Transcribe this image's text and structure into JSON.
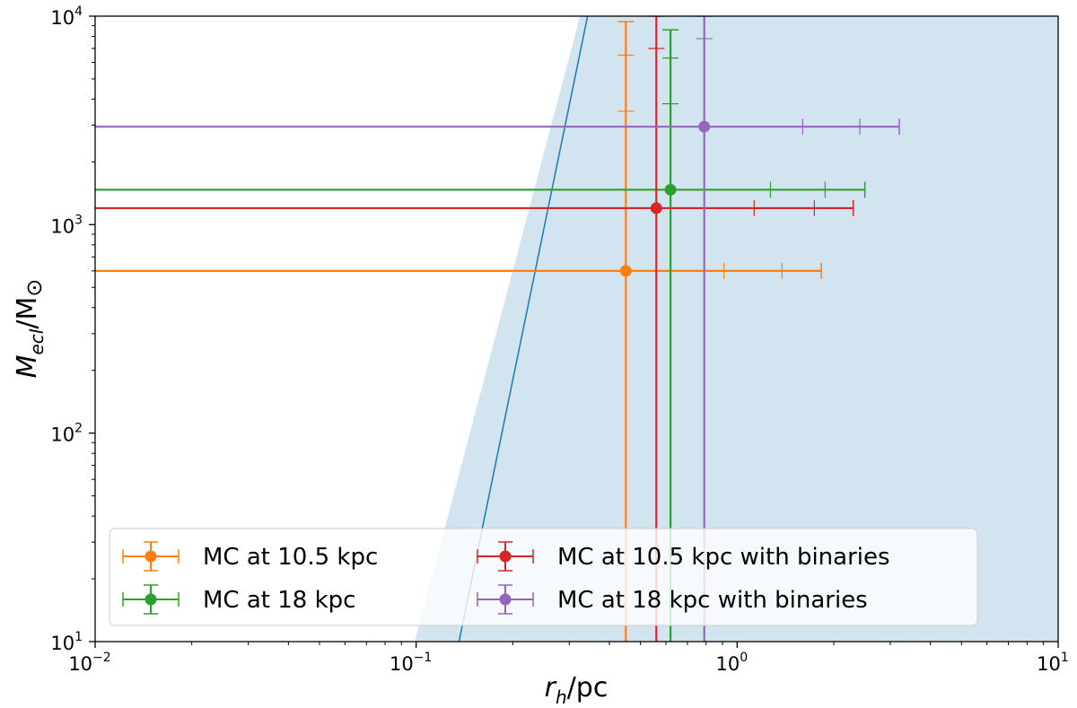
{
  "chart_data": {
    "type": "scatter",
    "x_scale": "log",
    "y_scale": "log",
    "xlim": [
      0.01,
      10
    ],
    "ylim": [
      10,
      10000
    ],
    "xlabel": {
      "main": "r",
      "sub": "h",
      "rest": "/pc"
    },
    "ylabel": {
      "main": "M",
      "sub": "ecl",
      "rest": "/M",
      "sym": "⊙"
    },
    "x_ticks": [
      {
        "value": 0.01,
        "base": "10",
        "exp": "−2"
      },
      {
        "value": 0.1,
        "base": "10",
        "exp": "−1"
      },
      {
        "value": 1,
        "base": "10",
        "exp": "0"
      },
      {
        "value": 10,
        "base": "10",
        "exp": "1"
      }
    ],
    "y_ticks": [
      {
        "value": 10,
        "base": "10",
        "exp": "1"
      },
      {
        "value": 100,
        "base": "10",
        "exp": "2"
      },
      {
        "value": 1000,
        "base": "10",
        "exp": "3"
      },
      {
        "value": 10000,
        "base": "10",
        "exp": "4"
      }
    ],
    "shaded_region": {
      "color": "#1f77b4",
      "opacity": 0.2,
      "boundary": [
        [
          0.099,
          10
        ],
        [
          0.324,
          10000
        ]
      ]
    },
    "reference_line": {
      "color": "#1f77b4",
      "points": [
        [
          0.136,
          10
        ],
        [
          0.342,
          10000
        ]
      ]
    },
    "series": [
      {
        "name": "MC at 10.5 kpc",
        "color": "#ff7f0e",
        "x": 0.45,
        "y": 600,
        "xerr": [
          0.45,
          1.38
        ],
        "yerr": [
          590,
          8800
        ],
        "x_ticks": [
          0.91,
          1.38
        ],
        "y_ticks": [
          3500,
          6500
        ]
      },
      {
        "name": "MC at 18 kpc",
        "color": "#2ca02c",
        "x": 0.62,
        "y": 1470,
        "xerr": [
          0.62,
          1.88
        ],
        "yerr": [
          1460,
          7130
        ],
        "x_ticks": [
          1.27,
          1.88
        ],
        "y_ticks": [
          3800,
          6300
        ]
      },
      {
        "name": "MC at 10.5 kpc with binaries",
        "color": "#d62728",
        "x": 0.56,
        "y": 1200,
        "xerr": [
          0.56,
          1.74
        ],
        "yerr": [
          1190,
          8800
        ],
        "x_ticks": [
          1.13,
          1.74
        ],
        "y_ticks": [
          7000
        ]
      },
      {
        "name": "MC at 18 kpc with binaries",
        "color": "#9467bd",
        "x": 0.79,
        "y": 2950,
        "xerr": [
          0.79,
          2.41
        ],
        "yerr": [
          2940,
          7050
        ],
        "x_ticks": [
          1.6,
          2.41
        ],
        "y_ticks": [
          7800
        ]
      }
    ],
    "legend": {
      "position": "lower-center",
      "order": [
        0,
        1,
        2,
        3
      ]
    }
  }
}
